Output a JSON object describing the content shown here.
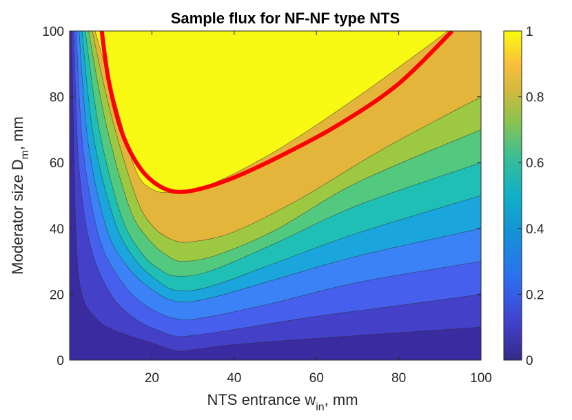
{
  "chart_data": {
    "type": "contour",
    "title": "Sample flux for NF-NF type NTS",
    "xlabel": {
      "prefix": "NTS entrance w",
      "subscript": "in",
      "suffix": ", mm"
    },
    "ylabel": {
      "prefix": "Moderator size D",
      "subscript": "m",
      "suffix": ", mm"
    },
    "xlim": [
      0,
      100
    ],
    "ylim": [
      0,
      100
    ],
    "xticks": [
      20,
      40,
      60,
      80,
      100
    ],
    "xtick_labels": [
      "20",
      "40",
      "60",
      "80",
      "100"
    ],
    "yticks": [
      0,
      20,
      40,
      60,
      80,
      100
    ],
    "ytick_labels": [
      "0",
      "20",
      "40",
      "60",
      "80",
      "100"
    ],
    "colorbar": {
      "range": [
        0,
        1
      ],
      "ticks": [
        0,
        0.2,
        0.4,
        0.6,
        0.8,
        1
      ],
      "tick_labels": [
        "0",
        "0.2",
        "0.4",
        "0.6",
        "0.8",
        "1"
      ],
      "colormap": "parula"
    },
    "levels": [
      0,
      0.1,
      0.2,
      0.3,
      0.4,
      0.5,
      0.6,
      0.7,
      0.8,
      0.9,
      1.0
    ],
    "level_colors": [
      "#3a2ba0",
      "#4440c8",
      "#4660ed",
      "#3a82f6",
      "#1aa6dc",
      "#20bfb5",
      "#53c97f",
      "#9cc842",
      "#e3b63b",
      "#f8d83a",
      "#f9fa14"
    ],
    "contour_lines": [
      {
        "level": 0.1,
        "points": [
          [
            0.5,
            100
          ],
          [
            1.5,
            40
          ],
          [
            3,
            20
          ],
          [
            7,
            12
          ],
          [
            12,
            8.5
          ],
          [
            20,
            5.2
          ],
          [
            26,
            2.8
          ],
          [
            30,
            3.2
          ],
          [
            40,
            4.7
          ],
          [
            60,
            6.6
          ],
          [
            80,
            8.3
          ],
          [
            100,
            10
          ]
        ]
      },
      {
        "level": 0.2,
        "points": [
          [
            1,
            100
          ],
          [
            2.2,
            60
          ],
          [
            5,
            35
          ],
          [
            10,
            20
          ],
          [
            16,
            12.5
          ],
          [
            22,
            8.8
          ],
          [
            26,
            7.2
          ],
          [
            30,
            7.5
          ],
          [
            40,
            9.3
          ],
          [
            60,
            13.3
          ],
          [
            80,
            16.6
          ],
          [
            100,
            20
          ]
        ]
      },
      {
        "level": 0.3,
        "points": [
          [
            1.6,
            100
          ],
          [
            3.2,
            65
          ],
          [
            7,
            38
          ],
          [
            12,
            25
          ],
          [
            18,
            17
          ],
          [
            26,
            12.5
          ],
          [
            34,
            13.2
          ],
          [
            50,
            17.5
          ],
          [
            70,
            23.6
          ],
          [
            100,
            30
          ]
        ]
      },
      {
        "level": 0.4,
        "points": [
          [
            2.3,
            100
          ],
          [
            4.5,
            66
          ],
          [
            9,
            40
          ],
          [
            14,
            28.5
          ],
          [
            20,
            21.5
          ],
          [
            26,
            17.8
          ],
          [
            34,
            18.8
          ],
          [
            50,
            24.5
          ],
          [
            70,
            31.6
          ],
          [
            100,
            40
          ]
        ]
      },
      {
        "level": 0.5,
        "points": [
          [
            3,
            100
          ],
          [
            5.8,
            68
          ],
          [
            11,
            42
          ],
          [
            16,
            30.5
          ],
          [
            21,
            24.5
          ],
          [
            26,
            21.2
          ],
          [
            34,
            22.3
          ],
          [
            50,
            29.5
          ],
          [
            70,
            38.6
          ],
          [
            100,
            50
          ]
        ]
      },
      {
        "level": 0.6,
        "points": [
          [
            3.8,
            100
          ],
          [
            7.2,
            70
          ],
          [
            12.5,
            44
          ],
          [
            17.5,
            32.5
          ],
          [
            22,
            27.5
          ],
          [
            26,
            25.5
          ],
          [
            34,
            27
          ],
          [
            50,
            35.5
          ],
          [
            70,
            47
          ],
          [
            100,
            60
          ]
        ]
      },
      {
        "level": 0.7,
        "points": [
          [
            4.6,
            100
          ],
          [
            8.8,
            72
          ],
          [
            14.5,
            46.5
          ],
          [
            19,
            37
          ],
          [
            24,
            31.5
          ],
          [
            28,
            30
          ],
          [
            36,
            32
          ],
          [
            50,
            39.5
          ],
          [
            70,
            54
          ],
          [
            100,
            70
          ]
        ]
      },
      {
        "level": 0.8,
        "points": [
          [
            5.5,
            100
          ],
          [
            10,
            75
          ],
          [
            16,
            50
          ],
          [
            20,
            41
          ],
          [
            25,
            36.5
          ],
          [
            30,
            36
          ],
          [
            40,
            39
          ],
          [
            56,
            49
          ],
          [
            76,
            64
          ],
          [
            100,
            80
          ]
        ]
      },
      {
        "level": 0.9,
        "points": [
          [
            6.2,
            100
          ],
          [
            10.8,
            80
          ],
          [
            16,
            58
          ],
          [
            20,
            52
          ],
          [
            25,
            51
          ],
          [
            34,
            53.3
          ],
          [
            50,
            63.5
          ],
          [
            70,
            80
          ],
          [
            92,
            100
          ]
        ]
      }
    ],
    "highlight_curve": {
      "color": "#ff0000",
      "points": [
        [
          7.8,
          100
        ],
        [
          9.5,
          85
        ],
        [
          12.5,
          70
        ],
        [
          16,
          60.5
        ],
        [
          20,
          54.5
        ],
        [
          25,
          51.3
        ],
        [
          31,
          51.8
        ],
        [
          40,
          55.5
        ],
        [
          52,
          62.5
        ],
        [
          66,
          72
        ],
        [
          80,
          84
        ],
        [
          93,
          100
        ]
      ]
    }
  }
}
